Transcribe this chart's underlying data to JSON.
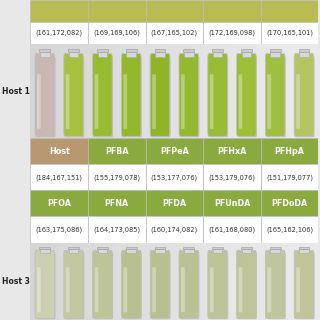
{
  "top_table": {
    "color_row": [
      "#b8bc52",
      "#b8bc52",
      "#b8bc52",
      "#b8bc52",
      "#b8bc52"
    ],
    "value_row": [
      "(161,172,082)",
      "(169,169,106)",
      "(167,165,102)",
      "(172,169,098)",
      "(170,165,101)"
    ]
  },
  "host1_label": "Host 1",
  "host1_bg": "#b0b898",
  "vials_host1": {
    "colors": [
      "#c8b8b4",
      "#a8c040",
      "#98bc30",
      "#94b82c",
      "#90b428",
      "#94b830",
      "#98bc34",
      "#9cbe38",
      "#a0be40",
      "#b4c460"
    ],
    "bg": "#9aaa78"
  },
  "table1": {
    "headers": [
      "Host",
      "PFBA",
      "PFPeA",
      "PFHxA",
      "PFHpA"
    ],
    "header_colors": [
      "#b89870",
      "#8aaa40",
      "#8aaa40",
      "#8aaa40",
      "#8aaa40"
    ],
    "values": [
      "(184,167,151)",
      "(155,179,078)",
      "(153,177,076)",
      "(153,179,076)",
      "(151,179,077)"
    ]
  },
  "table2": {
    "headers": [
      "PFOA",
      "PFNA",
      "PFDA",
      "PFUnDA",
      "PFDoDA"
    ],
    "header_colors": [
      "#8aaa40",
      "#8aaa40",
      "#8aaa40",
      "#8aaa40",
      "#8aaa40"
    ],
    "values": [
      "(163,175,086)",
      "(164,173,085)",
      "(160,174,082)",
      "(161,168,080)",
      "(165,162,106)"
    ]
  },
  "host3_label": "Host 3",
  "vials_host3": {
    "colors": [
      "#ccd0b0",
      "#c4c8a0",
      "#bcc498",
      "#b8c090",
      "#b8c090",
      "#bac294",
      "#bcc498",
      "#bec498",
      "#c0c69c",
      "#c0c498"
    ],
    "bg": "#b8bca0"
  },
  "white": "#ffffff",
  "border": "#bbbbbb",
  "text_dark": "#333333",
  "fs_header": 5.8,
  "fs_value": 4.8,
  "fs_label": 5.5
}
